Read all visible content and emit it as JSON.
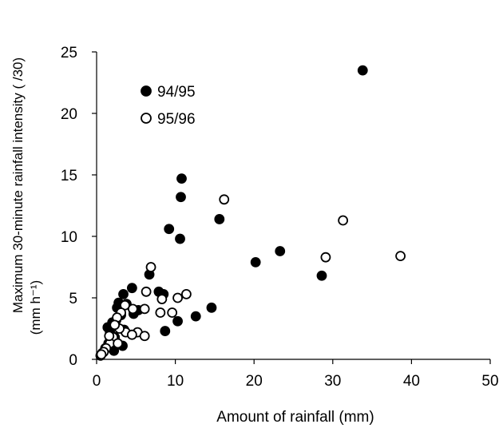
{
  "chart_data": {
    "type": "scatter",
    "xlabel": "Amount of rainfall (mm)",
    "ylabel_line1": "Maximum 30-minute rainfall intensity ( /30)",
    "ylabel_line2": "(mm h⁻¹)",
    "xlim": [
      0,
      50
    ],
    "ylim": [
      0,
      25
    ],
    "x_ticks": [
      0,
      10,
      20,
      30,
      40,
      50
    ],
    "y_ticks": [
      0,
      5,
      10,
      15,
      20,
      25
    ],
    "x_tick_labels": [
      "0",
      "10",
      "20",
      "30",
      "40",
      "50"
    ],
    "y_tick_labels": [
      "0",
      "5",
      "10",
      "15",
      "20",
      "25"
    ],
    "grid": false,
    "legend_position": "top-left",
    "series": [
      {
        "name": "94/95",
        "marker": "filled-circle",
        "points": [
          [
            33.8,
            23.5
          ],
          [
            10.8,
            14.7
          ],
          [
            10.7,
            13.2
          ],
          [
            15.6,
            11.4
          ],
          [
            9.2,
            10.6
          ],
          [
            10.6,
            9.8
          ],
          [
            23.3,
            8.8
          ],
          [
            20.2,
            7.9
          ],
          [
            28.6,
            6.8
          ],
          [
            6.7,
            6.9
          ],
          [
            7.9,
            5.5
          ],
          [
            8.5,
            5.3
          ],
          [
            4.5,
            5.8
          ],
          [
            3.4,
            5.3
          ],
          [
            2.8,
            4.6
          ],
          [
            3.8,
            4.5
          ],
          [
            2.6,
            4.2
          ],
          [
            5.3,
            4.0
          ],
          [
            4.7,
            3.7
          ],
          [
            14.6,
            4.2
          ],
          [
            12.6,
            3.5
          ],
          [
            10.3,
            3.1
          ],
          [
            8.7,
            2.3
          ],
          [
            3.1,
            3.6
          ],
          [
            2.5,
            3.2
          ],
          [
            2.0,
            3.0
          ],
          [
            1.7,
            2.2
          ],
          [
            3.5,
            2.4
          ],
          [
            2.3,
            1.8
          ],
          [
            1.5,
            1.3
          ],
          [
            3.3,
            1.1
          ],
          [
            1.1,
            0.9
          ],
          [
            2.2,
            0.7
          ],
          [
            0.7,
            0.5
          ],
          [
            0.5,
            0.3
          ],
          [
            1.4,
            2.6
          ],
          [
            1.9,
            1.5
          ]
        ]
      },
      {
        "name": "95/96",
        "marker": "open-circle",
        "points": [
          [
            16.2,
            13.0
          ],
          [
            31.3,
            11.3
          ],
          [
            38.6,
            8.4
          ],
          [
            29.1,
            8.3
          ],
          [
            6.9,
            7.5
          ],
          [
            6.3,
            5.5
          ],
          [
            11.4,
            5.3
          ],
          [
            10.3,
            5.0
          ],
          [
            8.3,
            4.9
          ],
          [
            6.1,
            4.1
          ],
          [
            4.6,
            4.1
          ],
          [
            8.1,
            3.8
          ],
          [
            9.6,
            3.8
          ],
          [
            3.6,
            4.4
          ],
          [
            3.1,
            3.8
          ],
          [
            2.6,
            3.4
          ],
          [
            3.7,
            2.2
          ],
          [
            5.2,
            2.2
          ],
          [
            6.1,
            1.9
          ],
          [
            4.5,
            2.0
          ],
          [
            2.9,
            2.5
          ],
          [
            2.1,
            1.8
          ],
          [
            1.7,
            1.3
          ],
          [
            2.7,
            1.3
          ],
          [
            1.2,
            0.9
          ],
          [
            0.9,
            0.6
          ],
          [
            0.6,
            0.4
          ],
          [
            2.3,
            2.8
          ],
          [
            1.6,
            1.9
          ]
        ]
      }
    ]
  }
}
